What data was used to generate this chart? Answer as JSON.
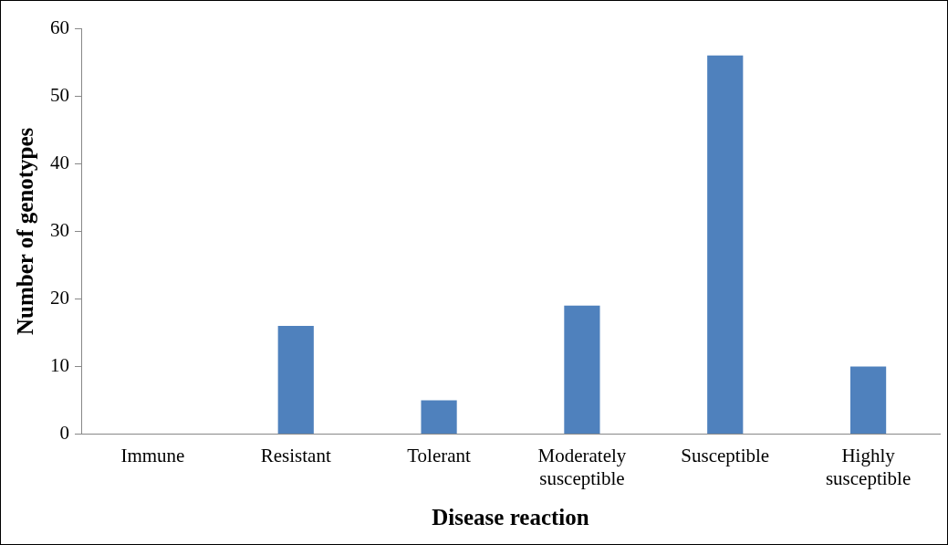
{
  "chart_data": {
    "type": "bar",
    "xlabel": "Disease reaction",
    "ylabel": "Number of genotypes",
    "categories": [
      "Immune",
      "Resistant",
      "Tolerant",
      "Moderately susceptible",
      "Susceptible",
      "Highly susceptible"
    ],
    "values": [
      0,
      16,
      5,
      19,
      56,
      10
    ],
    "color": "#4f81bd",
    "ylim": [
      0,
      60
    ],
    "yticks": [
      0,
      10,
      20,
      30,
      40,
      50,
      60
    ],
    "grid": false,
    "legend": false
  }
}
